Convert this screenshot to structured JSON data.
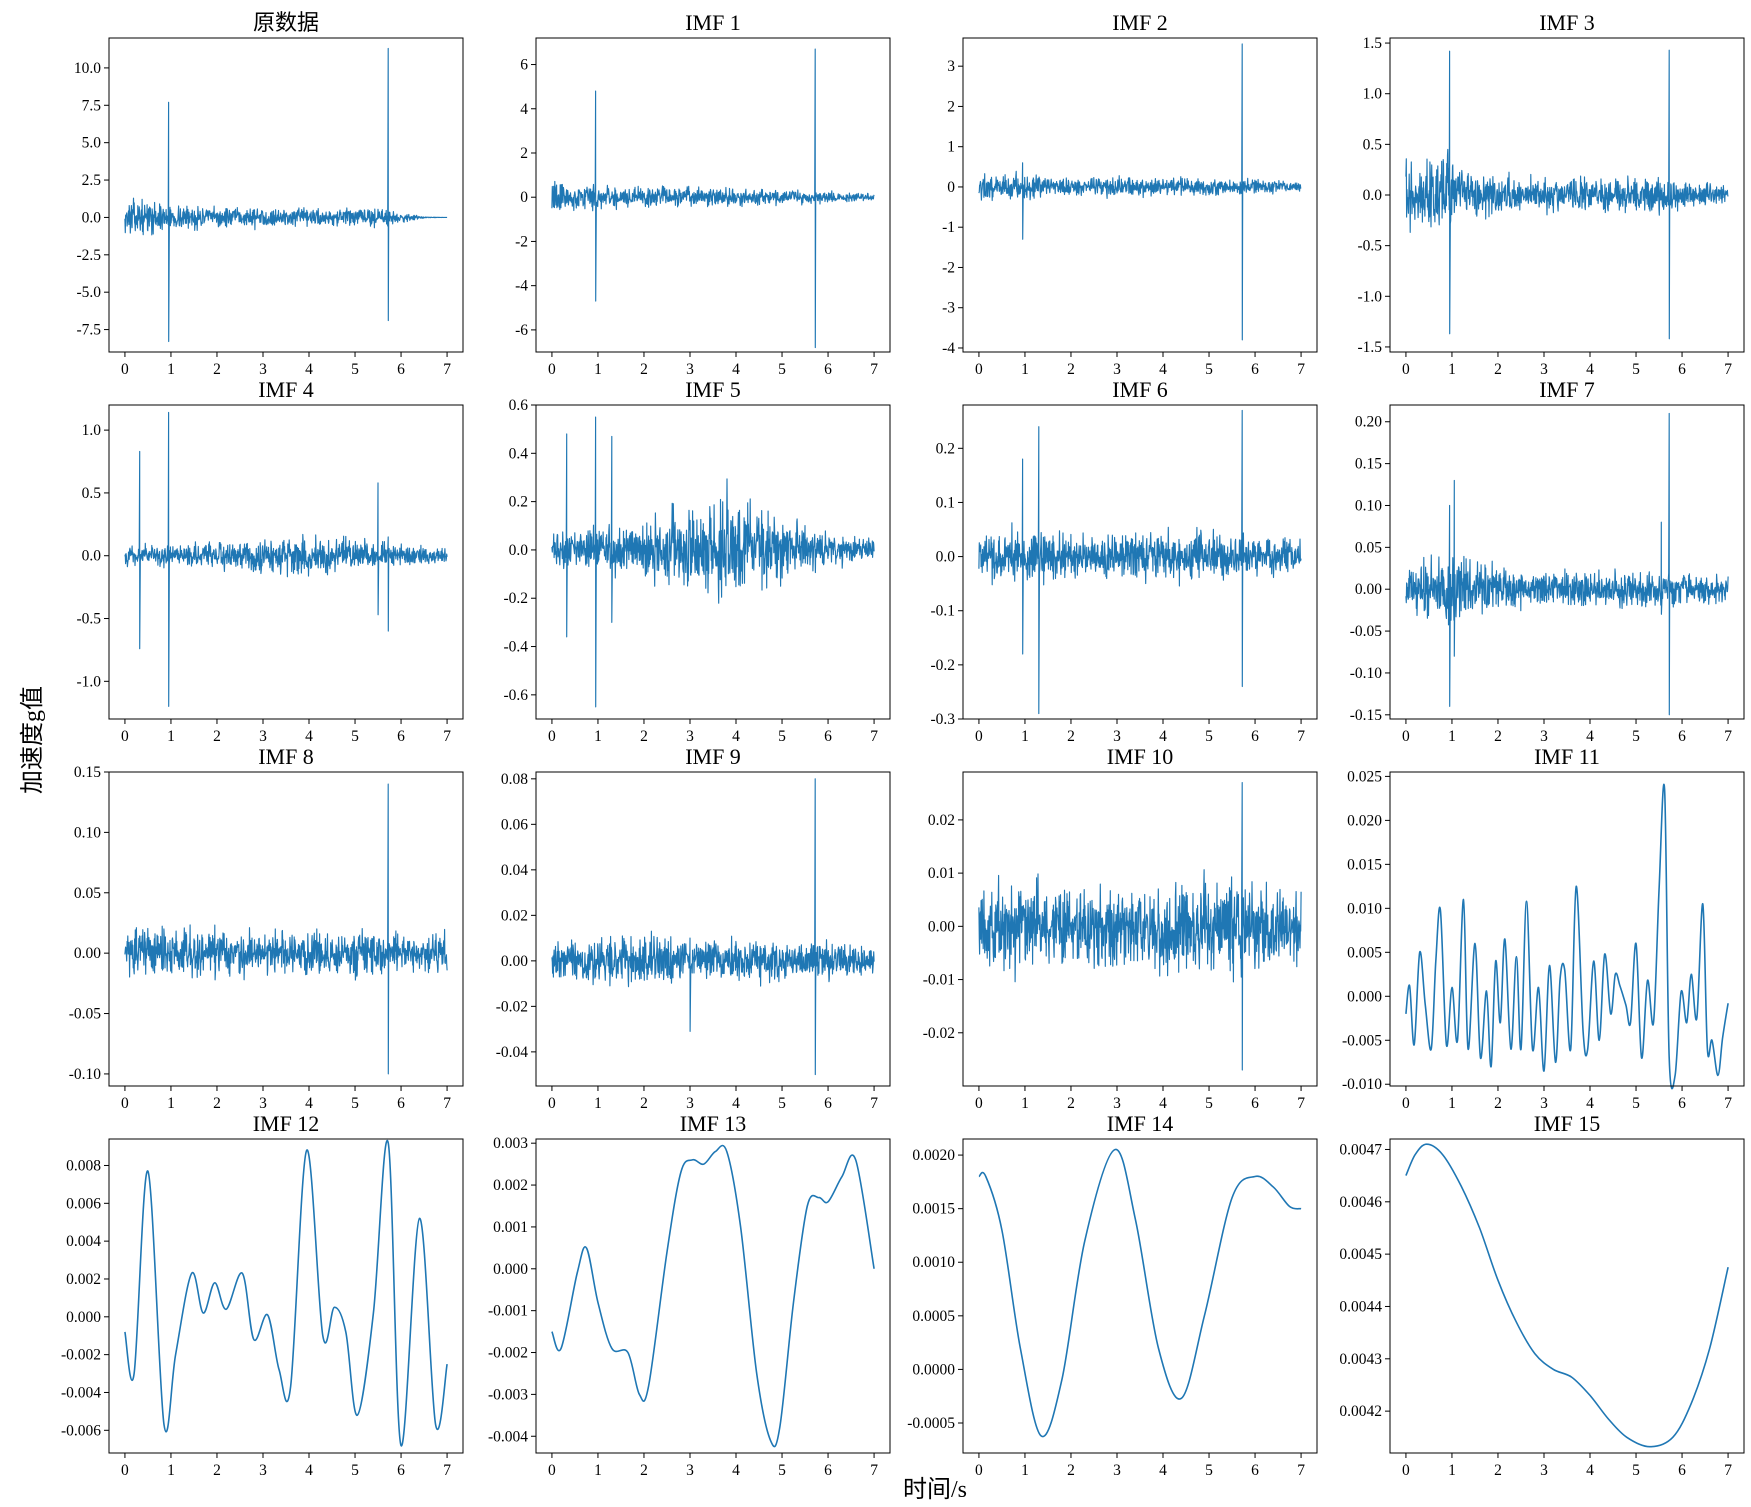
{
  "figure": {
    "xlabel": "时间/s",
    "ylabel": "加速度g值",
    "color": "#1f77b4",
    "grid": false
  },
  "chart_data": [
    {
      "type": "line",
      "title": "原数据",
      "xlim": [
        0,
        7
      ],
      "ylim": [
        -9,
        12
      ],
      "x_ticks": [
        0,
        1,
        2,
        3,
        4,
        5,
        6,
        7
      ],
      "y_ticks": [
        -7.5,
        -5.0,
        -2.5,
        0.0,
        2.5,
        5.0,
        7.5,
        10.0
      ],
      "y_tick_labels": [
        "-7.5",
        "-5.0",
        "-2.5",
        "0.0",
        "2.5",
        "5.0",
        "7.5",
        "10.0"
      ],
      "envelope": [
        [
          0,
          1.6
        ],
        [
          1,
          1.2
        ],
        [
          2,
          0.9
        ],
        [
          4,
          0.8
        ],
        [
          5.2,
          0.9
        ],
        [
          5.8,
          0.7
        ],
        [
          6.2,
          0.3
        ],
        [
          6.5,
          0.05
        ],
        [
          7,
          0.0
        ]
      ],
      "spikes": [
        [
          0.95,
          7.7,
          -8.3
        ],
        [
          5.72,
          11.3,
          -6.9
        ]
      ]
    },
    {
      "type": "line",
      "title": "IMF 1",
      "xlim": [
        0,
        7
      ],
      "ylim": [
        -7,
        7.2
      ],
      "x_ticks": [
        0,
        1,
        2,
        3,
        4,
        5,
        6,
        7
      ],
      "y_ticks": [
        -6,
        -4,
        -2,
        0,
        2,
        4,
        6
      ],
      "y_tick_labels": [
        "-6",
        "-4",
        "-2",
        "0",
        "2",
        "4",
        "6"
      ],
      "envelope": [
        [
          0,
          0.9
        ],
        [
          1,
          0.8
        ],
        [
          2,
          0.6
        ],
        [
          4,
          0.55
        ],
        [
          5.5,
          0.45
        ],
        [
          6.5,
          0.25
        ],
        [
          7,
          0.2
        ]
      ],
      "spikes": [
        [
          0.95,
          4.8,
          -4.7
        ],
        [
          5.72,
          6.7,
          -6.8
        ]
      ]
    },
    {
      "type": "line",
      "title": "IMF 2",
      "xlim": [
        0,
        7
      ],
      "ylim": [
        -4.1,
        3.7
      ],
      "x_ticks": [
        0,
        1,
        2,
        3,
        4,
        5,
        6,
        7
      ],
      "y_ticks": [
        -4,
        -3,
        -2,
        -1,
        0,
        1,
        2,
        3
      ],
      "y_tick_labels": [
        "-4",
        "-3",
        "-2",
        "-1",
        "0",
        "1",
        "2",
        "3"
      ],
      "envelope": [
        [
          0,
          0.4
        ],
        [
          1,
          0.45
        ],
        [
          2,
          0.3
        ],
        [
          4,
          0.3
        ],
        [
          6,
          0.25
        ],
        [
          7,
          0.15
        ]
      ],
      "spikes": [
        [
          0.95,
          0.6,
          -1.3
        ],
        [
          5.72,
          3.55,
          -3.8
        ]
      ]
    },
    {
      "type": "line",
      "title": "IMF 3",
      "xlim": [
        0,
        7
      ],
      "ylim": [
        -1.55,
        1.55
      ],
      "x_ticks": [
        0,
        1,
        2,
        3,
        4,
        5,
        6,
        7
      ],
      "y_ticks": [
        -1.5,
        -1.0,
        -0.5,
        0.0,
        0.5,
        1.0,
        1.5
      ],
      "y_tick_labels": [
        "-1.5",
        "-1.0",
        "-0.5",
        "0.0",
        "0.5",
        "1.0",
        "1.5"
      ],
      "envelope": [
        [
          0,
          0.4
        ],
        [
          0.8,
          0.55
        ],
        [
          1.2,
          0.35
        ],
        [
          2,
          0.25
        ],
        [
          4,
          0.22
        ],
        [
          5.5,
          0.25
        ],
        [
          7,
          0.12
        ]
      ],
      "spikes": [
        [
          0.95,
          1.42,
          -1.37
        ],
        [
          5.72,
          1.43,
          -1.42
        ]
      ]
    },
    {
      "type": "line",
      "title": "IMF 4",
      "xlim": [
        0,
        7
      ],
      "ylim": [
        -1.3,
        1.2
      ],
      "x_ticks": [
        0,
        1,
        2,
        3,
        4,
        5,
        6,
        7
      ],
      "y_ticks": [
        -1.0,
        -0.5,
        0.0,
        0.5,
        1.0
      ],
      "y_tick_labels": [
        "-1.0",
        "-0.5",
        "0.0",
        "0.5",
        "1.0"
      ],
      "envelope": [
        [
          0,
          0.12
        ],
        [
          1,
          0.12
        ],
        [
          2,
          0.14
        ],
        [
          4,
          0.22
        ],
        [
          5.5,
          0.15
        ],
        [
          7,
          0.08
        ]
      ],
      "spikes": [
        [
          0.32,
          0.83,
          -0.74
        ],
        [
          0.95,
          1.14,
          -1.2
        ],
        [
          5.5,
          0.58,
          -0.47
        ],
        [
          5.72,
          0.15,
          -0.6
        ]
      ]
    },
    {
      "type": "line",
      "title": "IMF 5",
      "xlim": [
        0,
        7
      ],
      "ylim": [
        -0.7,
        0.6
      ],
      "x_ticks": [
        0,
        1,
        2,
        3,
        4,
        5,
        6,
        7
      ],
      "y_ticks": [
        -0.6,
        -0.4,
        -0.2,
        0.0,
        0.2,
        0.4,
        0.6
      ],
      "y_tick_labels": [
        "-0.6",
        "-0.4",
        "-0.2",
        "0.0",
        "0.2",
        "0.4",
        "0.6"
      ],
      "envelope": [
        [
          0,
          0.1
        ],
        [
          1,
          0.12
        ],
        [
          2,
          0.15
        ],
        [
          3,
          0.25
        ],
        [
          3.8,
          0.32
        ],
        [
          4.5,
          0.25
        ],
        [
          5.5,
          0.12
        ],
        [
          7,
          0.07
        ]
      ],
      "spikes": [
        [
          0.32,
          0.48,
          -0.36
        ],
        [
          0.95,
          0.55,
          -0.65
        ],
        [
          1.3,
          0.47,
          -0.3
        ]
      ]
    },
    {
      "type": "line",
      "title": "IMF 6",
      "xlim": [
        0,
        7
      ],
      "ylim": [
        -0.3,
        0.28
      ],
      "x_ticks": [
        0,
        1,
        2,
        3,
        4,
        5,
        6,
        7
      ],
      "y_ticks": [
        -0.3,
        -0.2,
        -0.1,
        0.0,
        0.1,
        0.2
      ],
      "y_tick_labels": [
        "-0.3",
        "-0.2",
        "-0.1",
        "0.0",
        "0.1",
        "0.2"
      ],
      "envelope": [
        [
          0,
          0.06
        ],
        [
          1,
          0.07
        ],
        [
          2,
          0.06
        ],
        [
          4,
          0.06
        ],
        [
          7,
          0.05
        ]
      ],
      "spikes": [
        [
          0.95,
          0.18,
          -0.18
        ],
        [
          1.3,
          0.24,
          -0.29
        ],
        [
          5.72,
          0.27,
          -0.24
        ]
      ]
    },
    {
      "type": "line",
      "title": "IMF 7",
      "xlim": [
        0,
        7
      ],
      "ylim": [
        -0.155,
        0.22
      ],
      "x_ticks": [
        0,
        1,
        2,
        3,
        4,
        5,
        6,
        7
      ],
      "y_ticks": [
        -0.15,
        -0.1,
        -0.05,
        0.0,
        0.05,
        0.1,
        0.15,
        0.2
      ],
      "y_tick_labels": [
        "-0.15",
        "-0.10",
        "-0.05",
        "0.00",
        "0.05",
        "0.10",
        "0.15",
        "0.20"
      ],
      "envelope": [
        [
          0,
          0.04
        ],
        [
          1,
          0.06
        ],
        [
          1.5,
          0.05
        ],
        [
          2.5,
          0.03
        ],
        [
          4,
          0.03
        ],
        [
          7,
          0.025
        ]
      ],
      "spikes": [
        [
          0.95,
          0.1,
          -0.14
        ],
        [
          1.05,
          0.13,
          -0.08
        ],
        [
          5.72,
          0.21,
          -0.15
        ],
        [
          5.55,
          0.08,
          -0.03
        ]
      ]
    },
    {
      "type": "line",
      "title": "IMF 8",
      "xlim": [
        0,
        7
      ],
      "ylim": [
        -0.11,
        0.15
      ],
      "x_ticks": [
        0,
        1,
        2,
        3,
        4,
        5,
        6,
        7
      ],
      "y_ticks": [
        -0.1,
        -0.05,
        0.0,
        0.05,
        0.1,
        0.15
      ],
      "y_tick_labels": [
        "-0.10",
        "-0.05",
        "0.00",
        "0.05",
        "0.10",
        "0.15"
      ],
      "envelope": [
        [
          0,
          0.025
        ],
        [
          1,
          0.03
        ],
        [
          3,
          0.025
        ],
        [
          5,
          0.025
        ],
        [
          7,
          0.02
        ]
      ],
      "spikes": [
        [
          5.72,
          0.14,
          -0.1
        ]
      ]
    },
    {
      "type": "line",
      "title": "IMF 9",
      "xlim": [
        0,
        7
      ],
      "ylim": [
        -0.055,
        0.083
      ],
      "x_ticks": [
        0,
        1,
        2,
        3,
        4,
        5,
        6,
        7
      ],
      "y_ticks": [
        -0.04,
        -0.02,
        0.0,
        0.02,
        0.04,
        0.06,
        0.08
      ],
      "y_tick_labels": [
        "-0.04",
        "-0.02",
        "0.00",
        "0.02",
        "0.04",
        "0.06",
        "0.08"
      ],
      "envelope": [
        [
          0,
          0.012
        ],
        [
          2,
          0.015
        ],
        [
          4,
          0.013
        ],
        [
          7,
          0.01
        ]
      ],
      "spikes": [
        [
          5.72,
          0.08,
          -0.05
        ],
        [
          3.0,
          0.01,
          -0.031
        ]
      ]
    },
    {
      "type": "line",
      "title": "IMF 10",
      "xlim": [
        0,
        7
      ],
      "ylim": [
        -0.03,
        0.029
      ],
      "x_ticks": [
        0,
        1,
        2,
        3,
        4,
        5,
        6,
        7
      ],
      "y_ticks": [
        -0.02,
        -0.01,
        0.0,
        0.01,
        0.02
      ],
      "y_tick_labels": [
        "-0.02",
        "-0.01",
        "0.00",
        "0.01",
        "0.02"
      ],
      "envelope": [
        [
          0,
          0.012
        ],
        [
          3,
          0.01
        ],
        [
          5,
          0.013
        ],
        [
          7,
          0.01
        ]
      ],
      "spikes": [
        [
          5.72,
          0.027,
          -0.027
        ]
      ]
    },
    {
      "type": "line",
      "title": "IMF 11",
      "xlim": [
        0,
        7
      ],
      "ylim": [
        -0.0102,
        0.0255
      ],
      "x_ticks": [
        0,
        1,
        2,
        3,
        4,
        5,
        6,
        7
      ],
      "y_ticks": [
        -0.01,
        -0.005,
        0.0,
        0.005,
        0.01,
        0.015,
        0.02,
        0.025
      ],
      "y_tick_labels": [
        "-0.010",
        "-0.005",
        "0.000",
        "0.005",
        "0.010",
        "0.015",
        "0.020",
        "0.025"
      ],
      "x": [
        0,
        0.08,
        0.18,
        0.3,
        0.42,
        0.55,
        0.65,
        0.75,
        0.88,
        1.0,
        1.12,
        1.25,
        1.35,
        1.5,
        1.62,
        1.75,
        1.85,
        1.95,
        2.05,
        2.15,
        2.28,
        2.4,
        2.5,
        2.62,
        2.75,
        2.88,
        3.0,
        3.12,
        3.25,
        3.35,
        3.45,
        3.58,
        3.7,
        3.85,
        3.95,
        4.08,
        4.2,
        4.32,
        4.45,
        4.55,
        4.65,
        4.78,
        4.88,
        5.0,
        5.12,
        5.25,
        5.38,
        5.5,
        5.62,
        5.72,
        5.85,
        5.98,
        6.1,
        6.2,
        6.32,
        6.45,
        6.55,
        6.65,
        6.78,
        6.88,
        7.0
      ],
      "y": [
        -0.002,
        0.0012,
        -0.0055,
        0.005,
        -0.001,
        -0.006,
        0.004,
        0.0098,
        -0.0055,
        0.001,
        -0.005,
        0.011,
        -0.006,
        0.006,
        -0.007,
        0.0006,
        -0.008,
        0.004,
        -0.003,
        0.0065,
        -0.006,
        0.0045,
        -0.006,
        0.0108,
        -0.006,
        0.001,
        -0.0085,
        0.0035,
        -0.0075,
        0.002,
        0.003,
        -0.006,
        0.0125,
        -0.004,
        -0.006,
        0.004,
        -0.005,
        0.0048,
        -0.002,
        0.0025,
        0.0012,
        -0.001,
        -0.003,
        0.006,
        -0.007,
        0.0018,
        -0.003,
        0.012,
        0.0235,
        -0.007,
        -0.009,
        0.0005,
        -0.003,
        0.0025,
        -0.0025,
        0.0105,
        -0.006,
        -0.005,
        -0.009,
        -0.0048,
        -0.0008
      ]
    },
    {
      "type": "line",
      "title": "IMF 12",
      "xlim": [
        0,
        7
      ],
      "ylim": [
        -0.0072,
        0.0094
      ],
      "x_ticks": [
        0,
        1,
        2,
        3,
        4,
        5,
        6,
        7
      ],
      "y_ticks": [
        -0.006,
        -0.004,
        -0.002,
        0.0,
        0.002,
        0.004,
        0.006,
        0.008
      ],
      "y_tick_labels": [
        "-0.006",
        "-0.004",
        "-0.002",
        "0.000",
        "0.002",
        "0.004",
        "0.006",
        "0.008"
      ],
      "x": [
        0,
        0.2,
        0.5,
        0.85,
        1.1,
        1.45,
        1.7,
        1.95,
        2.2,
        2.55,
        2.8,
        3.1,
        3.35,
        3.6,
        3.95,
        4.3,
        4.55,
        4.8,
        5.05,
        5.4,
        5.72,
        6.0,
        6.4,
        6.75,
        7.0
      ],
      "y": [
        -0.0008,
        -0.003,
        0.0077,
        -0.0057,
        -0.002,
        0.0023,
        0.0002,
        0.0018,
        0.0004,
        0.0023,
        -0.0012,
        0.0001,
        -0.0028,
        -0.0037,
        0.0088,
        -0.001,
        0.0005,
        -0.0008,
        -0.0052,
        0.0002,
        0.0092,
        -0.0068,
        0.0052,
        -0.0057,
        -0.0025
      ]
    },
    {
      "type": "line",
      "title": "IMF 13",
      "xlim": [
        0,
        7
      ],
      "ylim": [
        -0.0044,
        0.0031
      ],
      "x_ticks": [
        0,
        1,
        2,
        3,
        4,
        5,
        6,
        7
      ],
      "y_ticks": [
        -0.004,
        -0.003,
        -0.002,
        -0.001,
        0.0,
        0.001,
        0.002,
        0.003
      ],
      "y_tick_labels": [
        "-0.004",
        "-0.003",
        "-0.002",
        "-0.001",
        "0.000",
        "0.001",
        "0.002",
        "0.003"
      ],
      "x": [
        0,
        0.2,
        0.55,
        0.75,
        1.0,
        1.3,
        1.65,
        1.9,
        2.1,
        2.5,
        2.8,
        3.05,
        3.3,
        3.55,
        3.8,
        4.1,
        4.45,
        4.75,
        4.95,
        5.25,
        5.55,
        5.8,
        6.0,
        6.3,
        6.6,
        7.0
      ],
      "y": [
        -0.0015,
        -0.0019,
        -0.0001,
        0.0005,
        -0.0008,
        -0.0019,
        -0.002,
        -0.003,
        -0.0028,
        0.0004,
        0.0023,
        0.0026,
        0.0025,
        0.0028,
        0.0028,
        0.001,
        -0.0025,
        -0.0041,
        -0.0038,
        -0.0008,
        0.0015,
        0.0017,
        0.0016,
        0.0022,
        0.0026,
        0.0
      ]
    },
    {
      "type": "line",
      "title": "IMF 14",
      "xlim": [
        0,
        7
      ],
      "ylim": [
        -0.00078,
        0.00215
      ],
      "x_ticks": [
        0,
        1,
        2,
        3,
        4,
        5,
        6,
        7
      ],
      "y_ticks": [
        -0.0005,
        0.0,
        0.0005,
        0.001,
        0.0015,
        0.002
      ],
      "y_tick_labels": [
        "-0.0005",
        "0.0000",
        "0.0005",
        "0.0010",
        "0.0015",
        "0.0020"
      ],
      "x": [
        0,
        0.15,
        0.5,
        0.9,
        1.35,
        1.8,
        2.3,
        2.95,
        3.4,
        3.9,
        4.4,
        4.9,
        5.5,
        6.0,
        6.4,
        6.75,
        7.0
      ],
      "y": [
        0.0018,
        0.0018,
        0.0013,
        0.0002,
        -0.00062,
        -0.0001,
        0.0012,
        0.00205,
        0.0014,
        0.0002,
        -0.00027,
        0.0005,
        0.0016,
        0.0018,
        0.0017,
        0.00152,
        0.0015
      ]
    },
    {
      "type": "line",
      "title": "IMF 15",
      "xlim": [
        0,
        7
      ],
      "ylim": [
        0.00412,
        0.00472
      ],
      "x_ticks": [
        0,
        1,
        2,
        3,
        4,
        5,
        6,
        7
      ],
      "y_ticks": [
        0.0042,
        0.0043,
        0.0044,
        0.0045,
        0.0046,
        0.0047
      ],
      "y_tick_labels": [
        "0.0042",
        "0.0043",
        "0.0044",
        "0.0045",
        "0.0046",
        "0.0047"
      ],
      "x": [
        0,
        0.2,
        0.45,
        0.8,
        1.2,
        1.6,
        2.0,
        2.4,
        2.8,
        3.2,
        3.6,
        4.0,
        4.4,
        4.8,
        5.3,
        5.8,
        6.2,
        6.6,
        7.0
      ],
      "y": [
        0.00465,
        0.00469,
        0.00471,
        0.00469,
        0.00463,
        0.00455,
        0.00445,
        0.00437,
        0.00431,
        0.00428,
        0.004265,
        0.00423,
        0.004185,
        0.00415,
        0.004132,
        0.00415,
        0.004215,
        0.00432,
        0.004475
      ]
    }
  ]
}
